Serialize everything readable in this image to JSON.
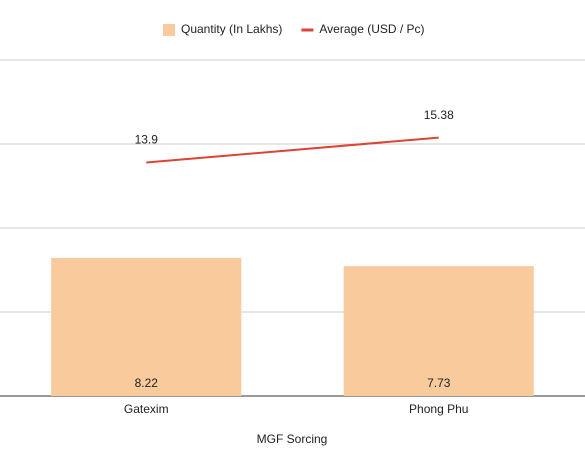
{
  "chart_data": {
    "type": "combo",
    "x_label": "MGF Sorcing",
    "categories": [
      "Gatexim",
      "Phong Phu"
    ],
    "series": [
      {
        "name": "Quantity (In Lakhs)",
        "type": "bar",
        "color": "#f9cb9c",
        "values": [
          8.22,
          7.73
        ]
      },
      {
        "name": "Average (USD / Pc)",
        "type": "line",
        "color": "#db4437",
        "values": [
          13.9,
          15.38
        ]
      }
    ],
    "ylim": [
      0,
      20
    ],
    "yticks": [
      0,
      5,
      10,
      15,
      20
    ],
    "grid": true,
    "legend": "top"
  }
}
